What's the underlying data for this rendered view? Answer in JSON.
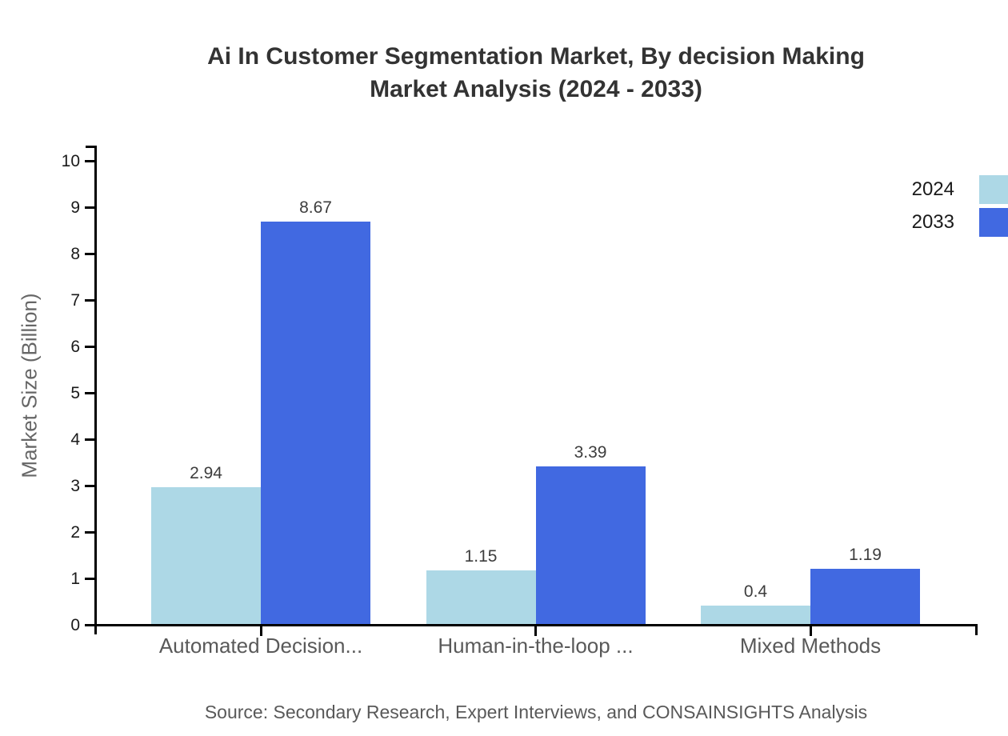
{
  "title": {
    "line1": "Ai In Customer Segmentation Market, By decision Making",
    "line2": "Market Analysis (2024 - 2033)"
  },
  "chart_data": {
    "type": "bar",
    "categories": [
      "Automated Decision...",
      "Human-in-the-loop ...",
      "Mixed Methods"
    ],
    "series": [
      {
        "name": "2024",
        "color": "#ADD8E6",
        "values": [
          2.94,
          1.15,
          0.4
        ],
        "value_labels": [
          "2.94",
          "1.15",
          "0.4"
        ]
      },
      {
        "name": "2033",
        "color": "#4169E1",
        "values": [
          8.67,
          3.39,
          1.19
        ],
        "value_labels": [
          "8.67",
          "3.39",
          "1.19"
        ]
      }
    ],
    "xlabel": "",
    "ylabel": "Market Size (Billion)",
    "ylim": [
      0,
      10
    ],
    "ytick_step": 1,
    "grid": false,
    "legend_position": "top-right"
  },
  "source_note": "Source: Secondary Research, Expert Interviews, and CONSAINSIGHTS Analysis",
  "colors": {
    "background": "#ffffff",
    "axis": "#000000",
    "title_text": "#333333",
    "tick_label_text": "#1a1a1a",
    "category_label_text": "#595959",
    "value_label_text": "#3d3d3d",
    "series_2024": "#ADD8E6",
    "series_2033": "#4169E1"
  }
}
